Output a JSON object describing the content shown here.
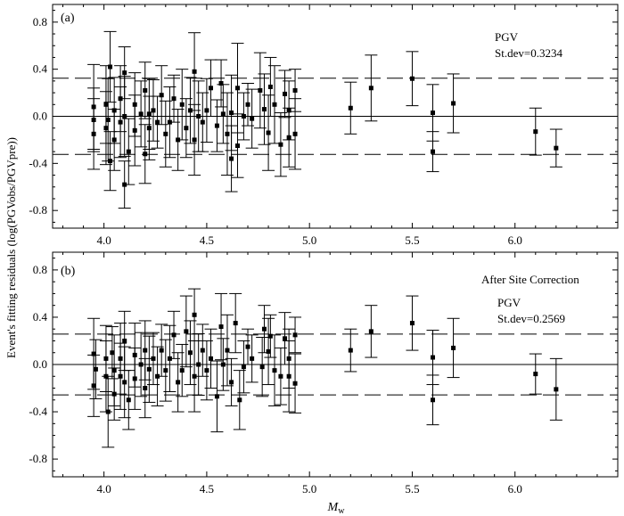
{
  "figure": {
    "ylabel": "Event's fitting residuals (log(PGVobs/PGVpre))",
    "xlabel_main": "M",
    "xlabel_sub": "w"
  },
  "chart_data": [
    {
      "type": "scatter",
      "panel_label": "(a)",
      "annotations": [
        "PGV",
        "St.dev=0.3234"
      ],
      "stdev": 0.3234,
      "xlim": [
        3.75,
        6.5
      ],
      "ylim": [
        -0.95,
        0.95
      ],
      "xticks": [
        4.0,
        4.5,
        5.0,
        5.5,
        6.0
      ],
      "xtick_labels": [
        "4.0",
        "4.5",
        "5.0",
        "5.5",
        "6.0"
      ],
      "yticks": [
        -0.8,
        -0.4,
        0.0,
        0.4,
        0.8
      ],
      "ytick_labels": [
        "-0.8",
        "-0.4",
        "0.0",
        "0.4",
        "0.8"
      ],
      "reference_lines": {
        "solid": 0.0,
        "dashed": [
          0.3234,
          -0.3234
        ]
      },
      "points": [
        {
          "x": 3.95,
          "y": 0.08,
          "err": 0.36
        },
        {
          "x": 3.95,
          "y": -0.15,
          "err": 0.3
        },
        {
          "x": 3.95,
          "y": -0.03,
          "err": 0.27
        },
        {
          "x": 4.01,
          "y": 0.1,
          "err": 0.33
        },
        {
          "x": 4.01,
          "y": -0.1,
          "err": 0.31
        },
        {
          "x": 4.02,
          "y": -0.03,
          "err": 0.35
        },
        {
          "x": 4.03,
          "y": 0.42,
          "err": 0.3
        },
        {
          "x": 4.03,
          "y": -0.38,
          "err": 0.25
        },
        {
          "x": 4.05,
          "y": 0.05,
          "err": 0.28
        },
        {
          "x": 4.05,
          "y": -0.2,
          "err": 0.26
        },
        {
          "x": 4.08,
          "y": -0.05,
          "err": 0.3
        },
        {
          "x": 4.08,
          "y": 0.15,
          "err": 0.28
        },
        {
          "x": 4.1,
          "y": -0.58,
          "err": 0.2
        },
        {
          "x": 4.1,
          "y": 0.37,
          "err": 0.22
        },
        {
          "x": 4.1,
          "y": 0.0,
          "err": 0.34
        },
        {
          "x": 4.12,
          "y": -0.3,
          "err": 0.28
        },
        {
          "x": 4.15,
          "y": 0.1,
          "err": 0.27
        },
        {
          "x": 4.15,
          "y": -0.12,
          "err": 0.3
        },
        {
          "x": 4.18,
          "y": 0.02,
          "err": 0.28
        },
        {
          "x": 4.2,
          "y": -0.32,
          "err": 0.25
        },
        {
          "x": 4.2,
          "y": 0.22,
          "err": 0.24
        },
        {
          "x": 4.22,
          "y": 0.02,
          "err": 0.3
        },
        {
          "x": 4.22,
          "y": -0.1,
          "err": 0.27
        },
        {
          "x": 4.24,
          "y": 0.05,
          "err": 0.26
        },
        {
          "x": 4.26,
          "y": -0.05,
          "err": 0.22
        },
        {
          "x": 4.28,
          "y": 0.18,
          "err": 0.25
        },
        {
          "x": 4.3,
          "y": -0.15,
          "err": 0.28
        },
        {
          "x": 4.32,
          "y": -0.05,
          "err": 0.3
        },
        {
          "x": 4.34,
          "y": 0.15,
          "err": 0.2
        },
        {
          "x": 4.36,
          "y": -0.2,
          "err": 0.26
        },
        {
          "x": 4.38,
          "y": 0.1,
          "err": 0.3
        },
        {
          "x": 4.4,
          "y": -0.1,
          "err": 0.25
        },
        {
          "x": 4.42,
          "y": 0.05,
          "err": 0.28
        },
        {
          "x": 4.44,
          "y": 0.38,
          "err": 0.33
        },
        {
          "x": 4.44,
          "y": -0.2,
          "err": 0.3
        },
        {
          "x": 4.46,
          "y": 0.0,
          "err": 0.3
        },
        {
          "x": 4.48,
          "y": -0.05,
          "err": 0.25
        },
        {
          "x": 4.5,
          "y": 0.05,
          "err": 0.27
        },
        {
          "x": 4.52,
          "y": 0.24,
          "err": 0.24
        },
        {
          "x": 4.55,
          "y": -0.08,
          "err": 0.22
        },
        {
          "x": 4.57,
          "y": 0.28,
          "err": 0.2
        },
        {
          "x": 4.58,
          "y": 0.02,
          "err": 0.25
        },
        {
          "x": 4.6,
          "y": -0.15,
          "err": 0.35
        },
        {
          "x": 4.62,
          "y": 0.03,
          "err": 0.32
        },
        {
          "x": 4.62,
          "y": -0.36,
          "err": 0.28
        },
        {
          "x": 4.65,
          "y": 0.24,
          "err": 0.38
        },
        {
          "x": 4.65,
          "y": -0.25,
          "err": 0.27
        },
        {
          "x": 4.68,
          "y": 0.0,
          "err": 0.2
        },
        {
          "x": 4.7,
          "y": 0.1,
          "err": 0.18
        },
        {
          "x": 4.72,
          "y": -0.02,
          "err": 0.25
        },
        {
          "x": 4.76,
          "y": 0.22,
          "err": 0.32
        },
        {
          "x": 4.78,
          "y": 0.06,
          "err": 0.3
        },
        {
          "x": 4.8,
          "y": -0.14,
          "err": 0.32
        },
        {
          "x": 4.81,
          "y": 0.25,
          "err": 0.25
        },
        {
          "x": 4.83,
          "y": 0.1,
          "err": 0.33
        },
        {
          "x": 4.86,
          "y": -0.24,
          "err": 0.27
        },
        {
          "x": 4.88,
          "y": 0.19,
          "err": 0.2
        },
        {
          "x": 4.9,
          "y": -0.18,
          "err": 0.25
        },
        {
          "x": 4.9,
          "y": 0.05,
          "err": 0.25
        },
        {
          "x": 4.93,
          "y": 0.22,
          "err": 0.18
        },
        {
          "x": 4.93,
          "y": -0.15,
          "err": 0.3
        },
        {
          "x": 5.2,
          "y": 0.07,
          "err": 0.22
        },
        {
          "x": 5.3,
          "y": 0.24,
          "err": 0.28
        },
        {
          "x": 5.5,
          "y": 0.32,
          "err": 0.23
        },
        {
          "x": 5.6,
          "y": 0.03,
          "err": 0.24
        },
        {
          "x": 5.6,
          "y": -0.3,
          "err": 0.17
        },
        {
          "x": 5.7,
          "y": 0.11,
          "err": 0.25
        },
        {
          "x": 6.1,
          "y": -0.13,
          "err": 0.2
        },
        {
          "x": 6.2,
          "y": -0.27,
          "err": 0.16
        }
      ]
    },
    {
      "type": "scatter",
      "panel_label": "(b)",
      "annotations": [
        "After Site Correction",
        "PGV",
        "St.dev=0.2569"
      ],
      "stdev": 0.2569,
      "xlim": [
        3.75,
        6.5
      ],
      "ylim": [
        -0.95,
        0.95
      ],
      "xticks": [
        4.0,
        4.5,
        5.0,
        5.5,
        6.0
      ],
      "xtick_labels": [
        "4.0",
        "4.5",
        "5.0",
        "5.5",
        "6.0"
      ],
      "yticks": [
        -0.8,
        -0.4,
        0.0,
        0.4,
        0.8
      ],
      "ytick_labels": [
        "-0.8",
        "-0.4",
        "0.0",
        "0.4",
        "0.8"
      ],
      "reference_lines": {
        "solid": 0.0,
        "dashed": [
          0.2569,
          -0.2569
        ]
      },
      "points": [
        {
          "x": 3.95,
          "y": 0.09,
          "err": 0.3
        },
        {
          "x": 3.95,
          "y": -0.18,
          "err": 0.26
        },
        {
          "x": 3.96,
          "y": -0.04,
          "err": 0.25
        },
        {
          "x": 4.01,
          "y": 0.05,
          "err": 0.28
        },
        {
          "x": 4.01,
          "y": -0.1,
          "err": 0.3
        },
        {
          "x": 4.02,
          "y": -0.4,
          "err": 0.3
        },
        {
          "x": 4.04,
          "y": 0.1,
          "err": 0.22
        },
        {
          "x": 4.05,
          "y": -0.05,
          "err": 0.3
        },
        {
          "x": 4.05,
          "y": -0.25,
          "err": 0.22
        },
        {
          "x": 4.08,
          "y": -0.1,
          "err": 0.28
        },
        {
          "x": 4.08,
          "y": 0.05,
          "err": 0.3
        },
        {
          "x": 4.1,
          "y": -0.15,
          "err": 0.3
        },
        {
          "x": 4.1,
          "y": 0.2,
          "err": 0.25
        },
        {
          "x": 4.12,
          "y": -0.3,
          "err": 0.25
        },
        {
          "x": 4.15,
          "y": 0.08,
          "err": 0.27
        },
        {
          "x": 4.15,
          "y": -0.12,
          "err": 0.26
        },
        {
          "x": 4.18,
          "y": 0.0,
          "err": 0.27
        },
        {
          "x": 4.2,
          "y": 0.12,
          "err": 0.25
        },
        {
          "x": 4.2,
          "y": -0.2,
          "err": 0.25
        },
        {
          "x": 4.22,
          "y": -0.04,
          "err": 0.28
        },
        {
          "x": 4.24,
          "y": 0.05,
          "err": 0.22
        },
        {
          "x": 4.26,
          "y": -0.1,
          "err": 0.25
        },
        {
          "x": 4.28,
          "y": 0.12,
          "err": 0.22
        },
        {
          "x": 4.3,
          "y": -0.05,
          "err": 0.26
        },
        {
          "x": 4.32,
          "y": 0.05,
          "err": 0.28
        },
        {
          "x": 4.34,
          "y": 0.25,
          "err": 0.2
        },
        {
          "x": 4.36,
          "y": -0.15,
          "err": 0.25
        },
        {
          "x": 4.38,
          "y": -0.05,
          "err": 0.22
        },
        {
          "x": 4.4,
          "y": 0.28,
          "err": 0.3
        },
        {
          "x": 4.42,
          "y": 0.1,
          "err": 0.27
        },
        {
          "x": 4.44,
          "y": 0.42,
          "err": 0.22
        },
        {
          "x": 4.44,
          "y": -0.1,
          "err": 0.3
        },
        {
          "x": 4.46,
          "y": 0.0,
          "err": 0.26
        },
        {
          "x": 4.48,
          "y": 0.12,
          "err": 0.22
        },
        {
          "x": 4.5,
          "y": -0.05,
          "err": 0.25
        },
        {
          "x": 4.52,
          "y": 0.05,
          "err": 0.25
        },
        {
          "x": 4.55,
          "y": -0.27,
          "err": 0.3
        },
        {
          "x": 4.57,
          "y": 0.32,
          "err": 0.28
        },
        {
          "x": 4.58,
          "y": 0.0,
          "err": 0.22
        },
        {
          "x": 4.6,
          "y": 0.12,
          "err": 0.3
        },
        {
          "x": 4.62,
          "y": -0.15,
          "err": 0.2
        },
        {
          "x": 4.64,
          "y": 0.35,
          "err": 0.25
        },
        {
          "x": 4.66,
          "y": -0.3,
          "err": 0.25
        },
        {
          "x": 4.68,
          "y": -0.02,
          "err": 0.22
        },
        {
          "x": 4.7,
          "y": 0.15,
          "err": 0.15
        },
        {
          "x": 4.72,
          "y": 0.05,
          "err": 0.2
        },
        {
          "x": 4.77,
          "y": -0.02,
          "err": 0.25
        },
        {
          "x": 4.78,
          "y": 0.3,
          "err": 0.2
        },
        {
          "x": 4.8,
          "y": 0.11,
          "err": 0.28
        },
        {
          "x": 4.81,
          "y": 0.24,
          "err": 0.18
        },
        {
          "x": 4.83,
          "y": -0.05,
          "err": 0.3
        },
        {
          "x": 4.86,
          "y": -0.1,
          "err": 0.24
        },
        {
          "x": 4.88,
          "y": 0.22,
          "err": 0.22
        },
        {
          "x": 4.9,
          "y": -0.1,
          "err": 0.3
        },
        {
          "x": 4.9,
          "y": 0.05,
          "err": 0.25
        },
        {
          "x": 4.93,
          "y": 0.25,
          "err": 0.15
        },
        {
          "x": 4.93,
          "y": -0.16,
          "err": 0.25
        },
        {
          "x": 5.2,
          "y": 0.12,
          "err": 0.18
        },
        {
          "x": 5.3,
          "y": 0.28,
          "err": 0.22
        },
        {
          "x": 5.5,
          "y": 0.35,
          "err": 0.23
        },
        {
          "x": 5.6,
          "y": 0.06,
          "err": 0.23
        },
        {
          "x": 5.6,
          "y": -0.3,
          "err": 0.21
        },
        {
          "x": 5.7,
          "y": 0.14,
          "err": 0.25
        },
        {
          "x": 6.1,
          "y": -0.08,
          "err": 0.17
        },
        {
          "x": 6.2,
          "y": -0.21,
          "err": 0.26
        }
      ]
    }
  ]
}
